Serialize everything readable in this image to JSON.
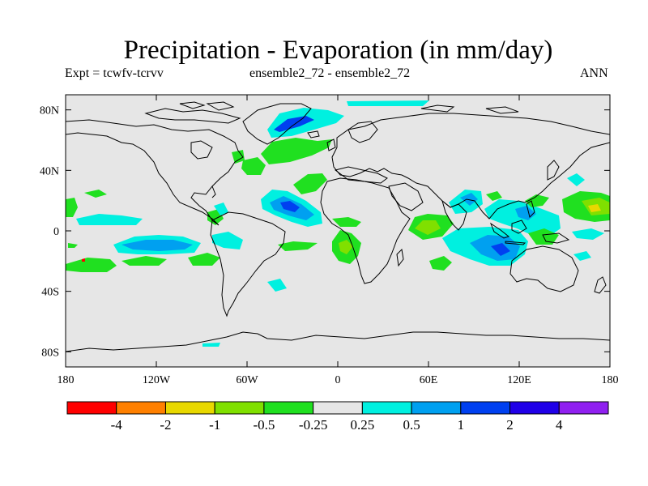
{
  "title": "Precipitation - Evaporation (in mm/day)",
  "subtitle_left": "Expt = tcwfv-tcrvv",
  "subtitle_center": "ensemble2_72 - ensemble2_72",
  "subtitle_right": "ANN",
  "chart_data": {
    "type": "heatmap",
    "title": "Precipitation - Evaporation (in mm/day)",
    "projection": "cylindrical equidistant",
    "xlim": [
      -180,
      180
    ],
    "ylim": [
      -90,
      90
    ],
    "x_ticks": [
      {
        "value": -180,
        "label": "180"
      },
      {
        "value": -120,
        "label": "120W"
      },
      {
        "value": -60,
        "label": "60W"
      },
      {
        "value": 0,
        "label": "0"
      },
      {
        "value": 60,
        "label": "60E"
      },
      {
        "value": 120,
        "label": "120E"
      },
      {
        "value": 180,
        "label": "180"
      }
    ],
    "y_ticks": [
      {
        "value": 80,
        "label": "80N"
      },
      {
        "value": 40,
        "label": "40N"
      },
      {
        "value": 0,
        "label": "0"
      },
      {
        "value": -40,
        "label": "40S"
      },
      {
        "value": -80,
        "label": "80S"
      }
    ],
    "colorbar": {
      "boundaries": [
        "-4",
        "-2",
        "-1",
        "-0.5",
        "-0.25",
        "0.25",
        "0.5",
        "1",
        "2",
        "4"
      ],
      "colors": [
        "#ff0000",
        "#ff8000",
        "#e8d800",
        "#80e000",
        "#20e020",
        "#e6e6e6",
        "#00f0e0",
        "#00a0f0",
        "#0040f0",
        "#2000e8",
        "#9020f0"
      ]
    },
    "background_level": "-0.25 to 0.25",
    "regions": [
      {
        "name": "north-atlantic-cyan",
        "lon": [
          -50,
          -20
        ],
        "lat": [
          60,
          75
        ],
        "level": "0.5 to 1"
      },
      {
        "name": "north-atlantic-green",
        "lon": [
          -45,
          -5
        ],
        "lat": [
          48,
          62
        ],
        "level": "-0.5 to -0.25"
      },
      {
        "name": "arctic-cyan",
        "lon": [
          0,
          60
        ],
        "lat": [
          82,
          88
        ],
        "level": "0.25 to 0.5"
      },
      {
        "name": "tropical-atlantic-blue",
        "lon": [
          -45,
          -20
        ],
        "lat": [
          5,
          25
        ],
        "level": "1 to 2"
      },
      {
        "name": "eq-pacific-blue",
        "lon": [
          -150,
          -100
        ],
        "lat": [
          -15,
          -5
        ],
        "level": "1 to 2"
      },
      {
        "name": "indian-ocean-blue",
        "lon": [
          80,
          120
        ],
        "lat": [
          -20,
          0
        ],
        "level": "1 to 2"
      },
      {
        "name": "bay-of-bengal-blue",
        "lon": [
          78,
          92
        ],
        "lat": [
          12,
          24
        ],
        "level": "0.5 to 1"
      },
      {
        "name": "west-pacific-green",
        "lon": [
          130,
          180
        ],
        "lat": [
          10,
          25
        ],
        "level": "-1 to -0.5"
      },
      {
        "name": "africa-green",
        "lon": [
          -2,
          30
        ],
        "lat": [
          -20,
          0
        ],
        "level": "-0.5 to -0.25"
      },
      {
        "name": "arabian-sea-green",
        "lon": [
          45,
          70
        ],
        "lat": [
          0,
          12
        ],
        "level": "-1 to -0.5"
      }
    ]
  }
}
